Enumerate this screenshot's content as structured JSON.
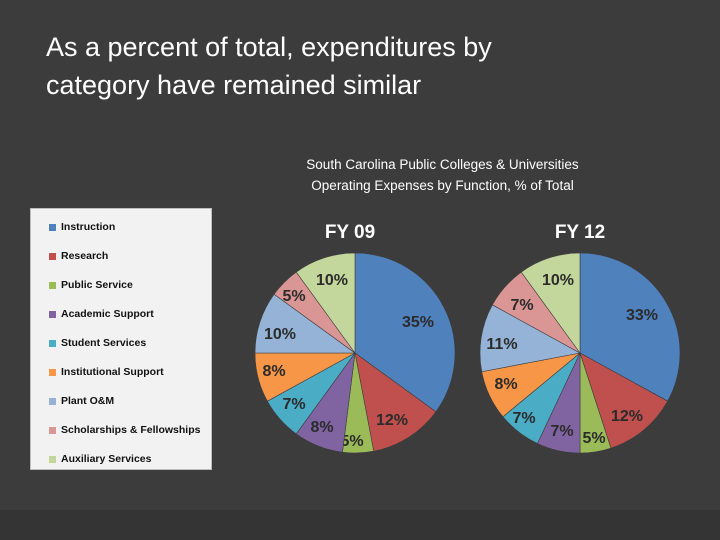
{
  "slide": {
    "title_line1": "As a percent of total, expenditures by",
    "title_line2": "category have remained similar"
  },
  "subtitle": {
    "line1": "South Carolina Public Colleges & Universities",
    "line2": "Operating Expenses by Function, % of Total"
  },
  "colors": {
    "background": "#3c3c3c",
    "label_color": "#2b2b2b",
    "chart_title_color": "#ffffff"
  },
  "chart_data": [
    {
      "type": "pie",
      "title": "FY 09",
      "legend_position": "left",
      "categories": [
        "Instruction",
        "Research",
        "Public Service",
        "Academic Support",
        "Student Services",
        "Institutional Support",
        "Plant O&M",
        "Scholarships & Fellowships",
        "Auxiliary Services"
      ],
      "colors": [
        "#4f81bd",
        "#c0504d",
        "#9bbb59",
        "#8064a2",
        "#4bacc6",
        "#f79646",
        "#95b3d7",
        "#d99694",
        "#c3d69b"
      ],
      "values": [
        35,
        12,
        5,
        8,
        7,
        8,
        10,
        5,
        10
      ],
      "labels": [
        "35%",
        "12%",
        "5%",
        "8%",
        "7%",
        "8%",
        "10%",
        "5%",
        "10%"
      ]
    },
    {
      "type": "pie",
      "title": "FY 12",
      "legend_position": "left",
      "categories": [
        "Instruction",
        "Research",
        "Public Service",
        "Academic Support",
        "Student Services",
        "Institutional Support",
        "Plant O&M",
        "Scholarships & Fellowships",
        "Auxiliary Services"
      ],
      "colors": [
        "#4f81bd",
        "#c0504d",
        "#9bbb59",
        "#8064a2",
        "#4bacc6",
        "#f79646",
        "#95b3d7",
        "#d99694",
        "#c3d69b"
      ],
      "values": [
        33,
        12,
        5,
        7,
        7,
        8,
        11,
        7,
        10
      ],
      "labels": [
        "33%",
        "12%",
        "5%",
        "7%",
        "7%",
        "8%",
        "11%",
        "7%",
        "10%"
      ]
    }
  ]
}
